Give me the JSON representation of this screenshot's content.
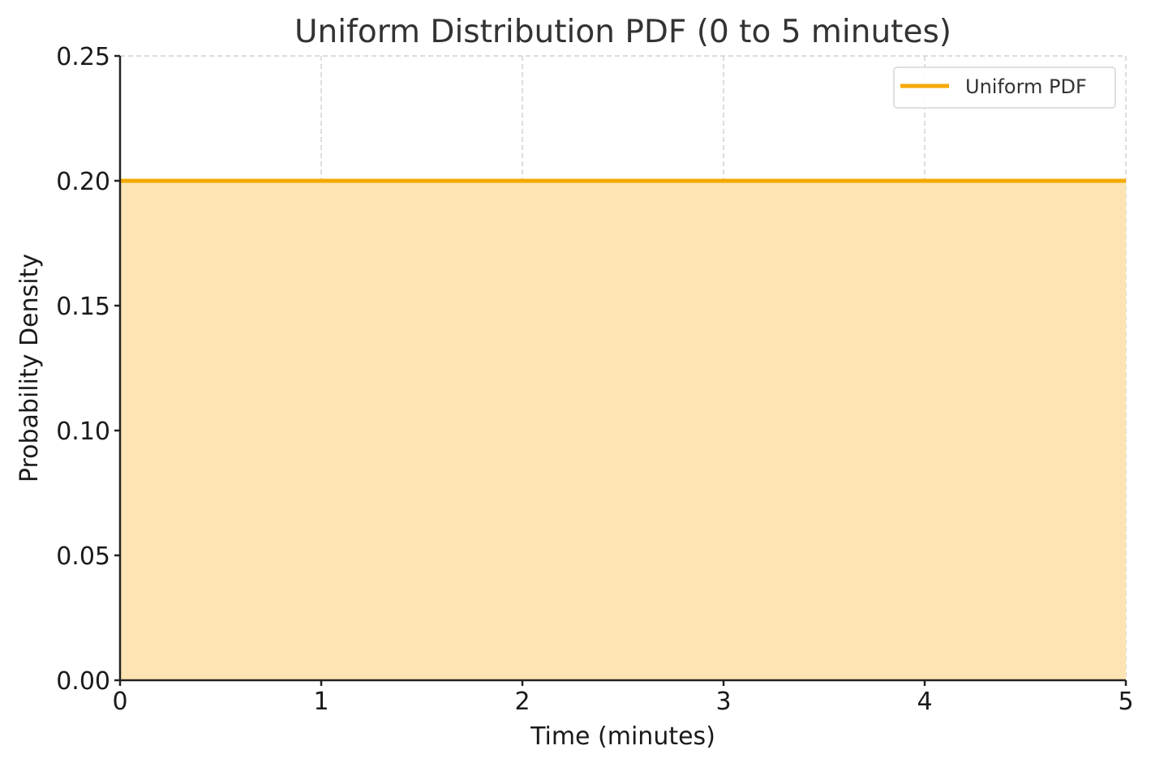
{
  "chart_data": {
    "type": "area",
    "title": "Uniform Distribution PDF (0 to 5 minutes)",
    "xlabel": "Time (minutes)",
    "ylabel": "Probability Density",
    "xlim": [
      0,
      5
    ],
    "ylim": [
      0,
      0.25
    ],
    "x_ticks": [
      0,
      1,
      2,
      3,
      4,
      5
    ],
    "x_tick_labels": [
      "0",
      "1",
      "2",
      "3",
      "4",
      "5"
    ],
    "y_ticks": [
      0,
      0.05,
      0.1,
      0.15,
      0.2,
      0.25
    ],
    "y_tick_labels": [
      "0.00",
      "0.05",
      "0.10",
      "0.15",
      "0.20",
      "0.25"
    ],
    "grid": true,
    "legend_position": "top-right",
    "series": [
      {
        "name": "Uniform PDF",
        "x": [
          0,
          5
        ],
        "y": [
          0.2,
          0.2
        ],
        "line_color": "#f5a800",
        "fill_color": "#fde5b3"
      }
    ]
  }
}
